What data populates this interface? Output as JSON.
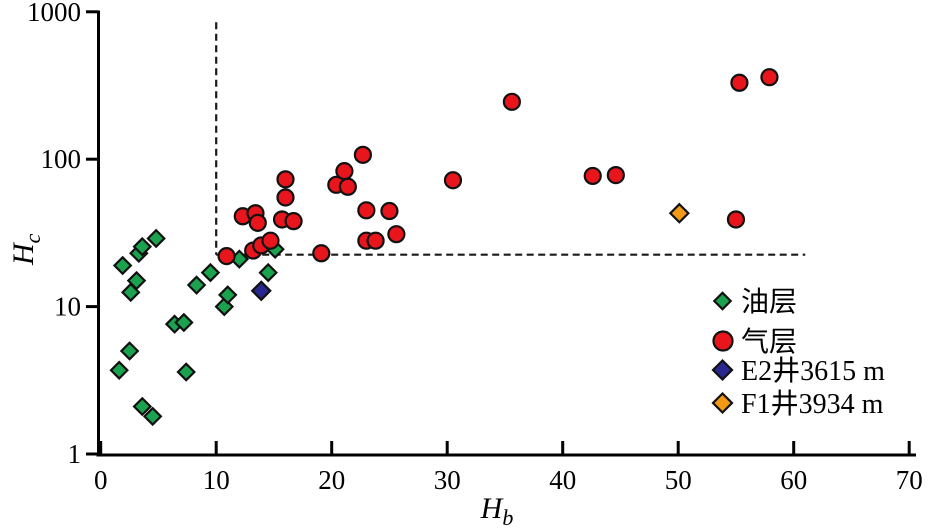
{
  "figure": {
    "background": "#ffffff",
    "axis_color": "#000000",
    "threshold_line_color": "#1a1a1a"
  },
  "chart_data": {
    "type": "scatter",
    "title": "",
    "xlabel": "H",
    "xlabel_sub": "b",
    "ylabel": "H",
    "ylabel_sub": "c",
    "x_axis": {
      "scale": "linear",
      "min": 0,
      "max": 70,
      "ticks": [
        0,
        10,
        20,
        30,
        40,
        50,
        60,
        70
      ]
    },
    "y_axis": {
      "scale": "log",
      "min": 1,
      "max": 1000,
      "ticks": [
        1,
        10,
        100,
        1000
      ]
    },
    "grid": false,
    "legend_position": "bottom-right",
    "series": [
      {
        "name": "油层",
        "marker": "diamond",
        "color": "#1BA24F",
        "outline": "#111111",
        "points": [
          [
            1.9,
            19
          ],
          [
            2.6,
            12.5
          ],
          [
            3.1,
            15
          ],
          [
            3.3,
            23
          ],
          [
            3.6,
            25.5
          ],
          [
            4.8,
            29
          ],
          [
            1.6,
            3.7
          ],
          [
            2.5,
            5
          ],
          [
            3.6,
            2.1
          ],
          [
            4.5,
            1.8
          ],
          [
            6.4,
            7.6
          ],
          [
            7.2,
            7.8
          ],
          [
            7.4,
            3.6
          ],
          [
            8.3,
            14
          ],
          [
            9.5,
            17
          ],
          [
            10.7,
            10
          ],
          [
            11.0,
            12
          ],
          [
            12.0,
            21
          ],
          [
            14.5,
            17
          ],
          [
            15.1,
            24.5
          ]
        ]
      },
      {
        "name": "气层",
        "marker": "circle",
        "color": "#E8151C",
        "outline": "#111111",
        "points": [
          [
            10.9,
            22
          ],
          [
            13.2,
            24
          ],
          [
            13.9,
            26
          ],
          [
            14.7,
            28
          ],
          [
            12.3,
            41
          ],
          [
            13.4,
            43
          ],
          [
            13.6,
            37
          ],
          [
            15.7,
            39
          ],
          [
            16.7,
            38
          ],
          [
            16.0,
            73
          ],
          [
            16.0,
            55
          ],
          [
            19.1,
            23
          ],
          [
            21.1,
            83
          ],
          [
            20.4,
            67
          ],
          [
            21.4,
            65
          ],
          [
            22.7,
            107
          ],
          [
            23.0,
            45
          ],
          [
            25.0,
            44.5
          ],
          [
            25.6,
            31
          ],
          [
            23.0,
            28
          ],
          [
            23.8,
            28
          ],
          [
            30.5,
            72
          ],
          [
            35.6,
            245
          ],
          [
            42.6,
            77
          ],
          [
            44.6,
            78
          ],
          [
            55.0,
            39
          ],
          [
            55.3,
            330
          ],
          [
            57.9,
            360
          ]
        ]
      },
      {
        "name": "E2井3615 m",
        "marker": "diamond",
        "color": "#27278D",
        "outline": "#111111",
        "points": [
          [
            13.9,
            12.8
          ]
        ]
      },
      {
        "name": "F1井3934 m",
        "marker": "diamond",
        "color": "#F29A16",
        "outline": "#111111",
        "points": [
          [
            50.1,
            43
          ]
        ]
      }
    ],
    "threshold_lines": {
      "vertical": {
        "x": 10,
        "y_from": 22.5,
        "y_to": 850
      },
      "horizontal": {
        "y": 22.5,
        "x_from": 10,
        "x_to": 61
      }
    }
  }
}
